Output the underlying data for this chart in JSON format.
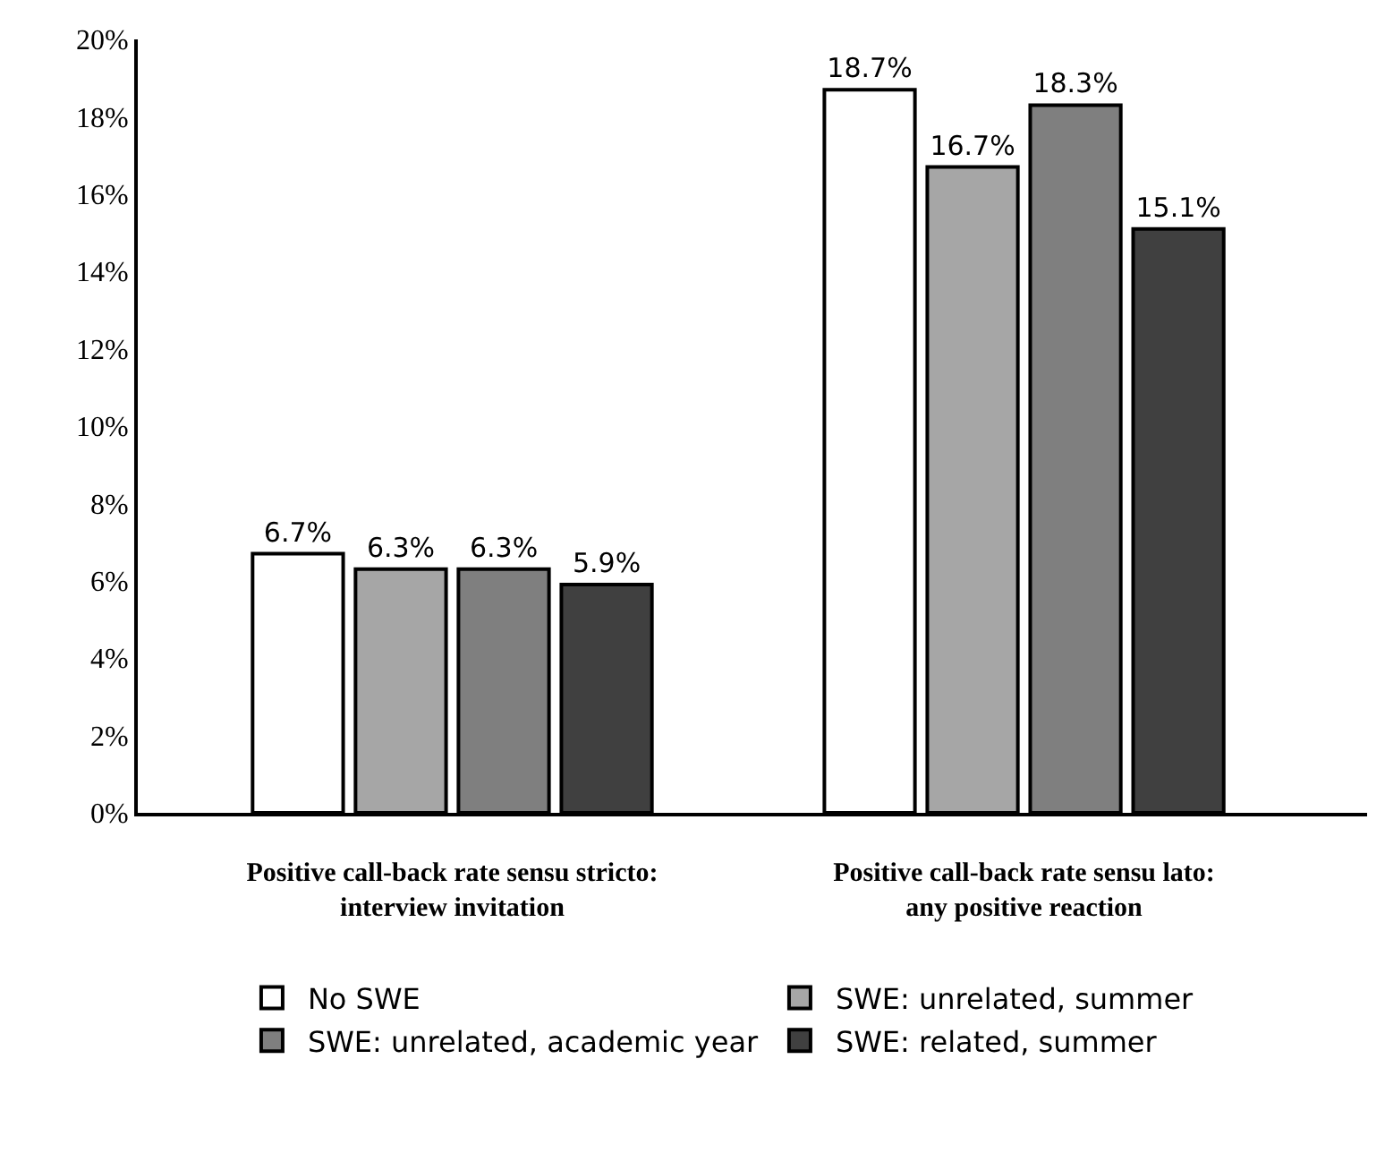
{
  "chart_data": {
    "type": "bar",
    "categories": [
      "Positive call-back rate sensu stricto:\ninterview invitation",
      "Positive call-back rate sensu lato:\nany positive reaction"
    ],
    "series": [
      {
        "name": "No SWE",
        "color": "#ffffff",
        "values": [
          6.7,
          18.7
        ],
        "value_labels": [
          "6.7%",
          "18.7%"
        ]
      },
      {
        "name": "SWE: unrelated, summer",
        "color": "#a6a6a6",
        "values": [
          6.3,
          16.7
        ],
        "value_labels": [
          "6.3%",
          "16.7%"
        ]
      },
      {
        "name": "SWE: unrelated, academic year",
        "color": "#7f7f7f",
        "values": [
          6.3,
          18.3
        ],
        "value_labels": [
          "6.3%",
          "18.3%"
        ]
      },
      {
        "name": "SWE: related, summer",
        "color": "#404040",
        "values": [
          5.9,
          15.1
        ],
        "value_labels": [
          "5.9%",
          "15.1%"
        ]
      }
    ],
    "ylim": [
      0,
      20
    ],
    "yticks": [
      {
        "value": 0,
        "label": "0%"
      },
      {
        "value": 2,
        "label": "2%"
      },
      {
        "value": 4,
        "label": "4%"
      },
      {
        "value": 6,
        "label": "6%"
      },
      {
        "value": 8,
        "label": "8%"
      },
      {
        "value": 10,
        "label": "10%"
      },
      {
        "value": 12,
        "label": "12%"
      },
      {
        "value": 14,
        "label": "14%"
      },
      {
        "value": 16,
        "label": "16%"
      },
      {
        "value": 18,
        "label": "18%"
      },
      {
        "value": 20,
        "label": "20%"
      }
    ],
    "legend": "bottom"
  }
}
